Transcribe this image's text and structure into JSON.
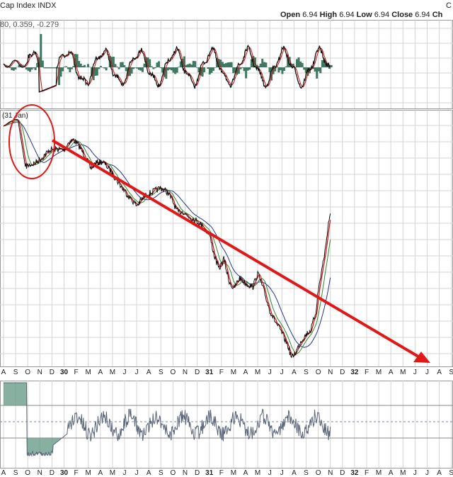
{
  "header": {
    "title": "Cap Index INDX",
    "corner_label": "C",
    "ohlc": [
      {
        "label": "Open",
        "value": "6.94"
      },
      {
        "label": "High",
        "value": "6.94"
      },
      {
        "label": "Low",
        "value": "6.94"
      },
      {
        "label": "Close",
        "value": "6.94"
      },
      {
        "label": "Ch",
        "value": ""
      }
    ],
    "indicator_readout": "80, 0.359, -0.279"
  },
  "colors": {
    "grid": "#d4d4d4",
    "frame": "#9a9a9a",
    "price": "#111111",
    "ma_fast": "#cc1111",
    "ma_mid": "#2e8b2e",
    "ma_slow": "#22338f",
    "histogram": "#3e7a62",
    "arrow": "#e01818",
    "annotation_circle": "#e01818",
    "rsi_line": "#5a6478",
    "rsi_fill": "#6a9c88"
  },
  "chart_data": {
    "type": "line",
    "annotation_label": "31 Jan",
    "x_axis": {
      "year_labels": [
        "30",
        "31",
        "32"
      ],
      "months_before_30": [
        "A",
        "S",
        "O",
        "N",
        "D"
      ],
      "months_30": [
        "F",
        "M",
        "A",
        "M",
        "J",
        "J",
        "A",
        "S",
        "O",
        "N",
        "D"
      ],
      "months_31": [
        "F",
        "M",
        "A",
        "M",
        "J",
        "J",
        "A",
        "S",
        "O",
        "N",
        "D"
      ],
      "months_32": [
        "F",
        "M",
        "A",
        "M",
        "J",
        "J",
        "A",
        "S"
      ]
    },
    "series": [
      {
        "values": [
          [
            0.0,
            178
          ],
          [
            0.5,
            172
          ],
          [
            1.0,
            168
          ],
          [
            1.2,
            170
          ],
          [
            1.8,
            235
          ],
          [
            2.1,
            233
          ],
          [
            2.6,
            230
          ],
          [
            3.2,
            222
          ],
          [
            3.8,
            212
          ],
          [
            4.4,
            210
          ],
          [
            5.0,
            212
          ],
          [
            5.4,
            200
          ],
          [
            5.8,
            197
          ],
          [
            6.2,
            205
          ],
          [
            6.8,
            222
          ],
          [
            7.2,
            238
          ],
          [
            7.6,
            230
          ],
          [
            8.2,
            228
          ],
          [
            8.8,
            240
          ],
          [
            9.2,
            250
          ],
          [
            9.8,
            265
          ],
          [
            10.4,
            278
          ],
          [
            11.0,
            290
          ],
          [
            11.4,
            282
          ],
          [
            11.8,
            275
          ],
          [
            12.4,
            270
          ],
          [
            13.0,
            265
          ],
          [
            13.6,
            272
          ],
          [
            14.0,
            285
          ],
          [
            14.4,
            300
          ],
          [
            14.8,
            298
          ],
          [
            15.2,
            305
          ],
          [
            15.8,
            310
          ],
          [
            16.4,
            318
          ],
          [
            17.0,
            330
          ],
          [
            17.4,
            360
          ],
          [
            17.8,
            380
          ],
          [
            18.2,
            365
          ],
          [
            18.6,
            395
          ],
          [
            19.0,
            408
          ],
          [
            19.5,
            392
          ],
          [
            20.0,
            400
          ],
          [
            20.6,
            405
          ],
          [
            21.0,
            385
          ],
          [
            21.5,
            410
          ],
          [
            22.0,
            438
          ],
          [
            22.5,
            455
          ],
          [
            23.0,
            470
          ],
          [
            23.5,
            488
          ],
          [
            23.8,
            505
          ],
          [
            24.2,
            495
          ],
          [
            24.6,
            480
          ],
          [
            25.0,
            472
          ],
          [
            25.4,
            465
          ],
          [
            25.8,
            440
          ],
          [
            26.0,
            410
          ],
          [
            26.3,
            380
          ],
          [
            26.6,
            350
          ],
          [
            26.8,
            320
          ],
          [
            27.0,
            300
          ]
        ]
      }
    ]
  }
}
